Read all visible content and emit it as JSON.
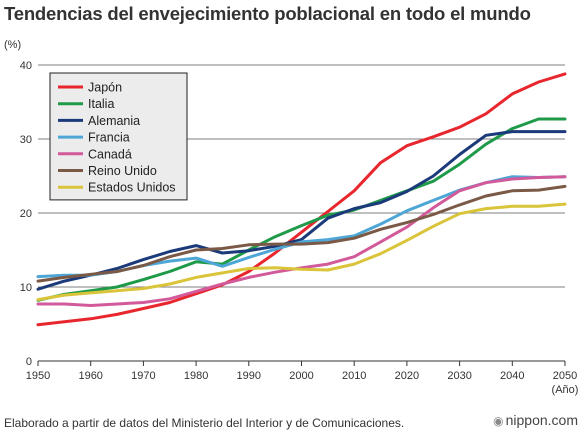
{
  "title": "Tendencias del envejecimiento poblacional en todo el mundo",
  "footer": "Elaborado a partir de datos del Ministerio del Interior y de Comunicaciones.",
  "brand": {
    "mark": "◉",
    "name": "nippon.com"
  },
  "chart_data": {
    "type": "line",
    "title": "Tendencias del envejecimiento poblacional en todo el mundo",
    "ylabel": "(%)",
    "xlabel": "(Año)",
    "x": [
      1950,
      1955,
      1960,
      1965,
      1970,
      1975,
      1980,
      1985,
      1990,
      1995,
      2000,
      2005,
      2010,
      2015,
      2020,
      2025,
      2030,
      2035,
      2040,
      2045,
      2050
    ],
    "xticks": [
      1950,
      1960,
      1970,
      1980,
      1990,
      2000,
      2010,
      2020,
      2030,
      2040,
      2050
    ],
    "yticks": [
      0,
      10,
      20,
      30,
      40
    ],
    "xlim": [
      1950,
      2050
    ],
    "ylim": [
      0,
      40
    ],
    "grid": "horizontal",
    "legend_position": "top-left",
    "series": [
      {
        "name": "Japón",
        "color": "#e8262d",
        "values": [
          4.9,
          5.3,
          5.7,
          6.3,
          7.1,
          7.9,
          9.1,
          10.3,
          12.1,
          14.6,
          17.4,
          20.2,
          23.0,
          26.8,
          29.1,
          30.3,
          31.6,
          33.4,
          36.1,
          37.7,
          38.8
        ]
      },
      {
        "name": "Italia",
        "color": "#1f9a49",
        "values": [
          8.2,
          9.0,
          9.5,
          10.0,
          11.0,
          12.1,
          13.4,
          13.1,
          15.0,
          16.8,
          18.3,
          19.7,
          20.4,
          21.7,
          23.0,
          24.3,
          26.6,
          29.3,
          31.4,
          32.7,
          32.7
        ]
      },
      {
        "name": "Alemania",
        "color": "#1b3a7a",
        "values": [
          9.7,
          10.8,
          11.6,
          12.5,
          13.7,
          14.8,
          15.6,
          14.6,
          14.9,
          15.5,
          16.4,
          19.3,
          20.6,
          21.4,
          22.9,
          25.0,
          27.9,
          30.5,
          31.0,
          31.0,
          31.0
        ]
      },
      {
        "name": "Francia",
        "color": "#4ea6d6",
        "values": [
          11.4,
          11.6,
          11.6,
          12.1,
          12.9,
          13.5,
          13.9,
          12.8,
          14.0,
          15.1,
          16.1,
          16.4,
          16.9,
          18.5,
          20.3,
          21.7,
          23.1,
          24.1,
          24.9,
          24.8,
          24.9
        ]
      },
      {
        "name": "Canadá",
        "color": "#d25a9a",
        "values": [
          7.7,
          7.7,
          7.5,
          7.7,
          7.9,
          8.4,
          9.4,
          10.4,
          11.3,
          12.0,
          12.6,
          13.1,
          14.1,
          16.1,
          18.1,
          20.7,
          23.0,
          24.1,
          24.6,
          24.8,
          24.9
        ]
      },
      {
        "name": "Reino Unido",
        "color": "#7a5a46",
        "values": [
          10.8,
          11.3,
          11.7,
          12.1,
          12.9,
          14.1,
          15.0,
          15.2,
          15.7,
          15.8,
          15.8,
          16.0,
          16.6,
          17.8,
          18.7,
          19.8,
          21.1,
          22.3,
          23.0,
          23.1,
          23.6
        ]
      },
      {
        "name": "Estados Unidos",
        "color": "#d9c43a",
        "values": [
          8.3,
          8.9,
          9.2,
          9.5,
          9.8,
          10.4,
          11.3,
          11.9,
          12.5,
          12.6,
          12.4,
          12.3,
          13.1,
          14.5,
          16.3,
          18.2,
          19.9,
          20.6,
          20.9,
          20.9,
          21.2
        ]
      }
    ]
  }
}
